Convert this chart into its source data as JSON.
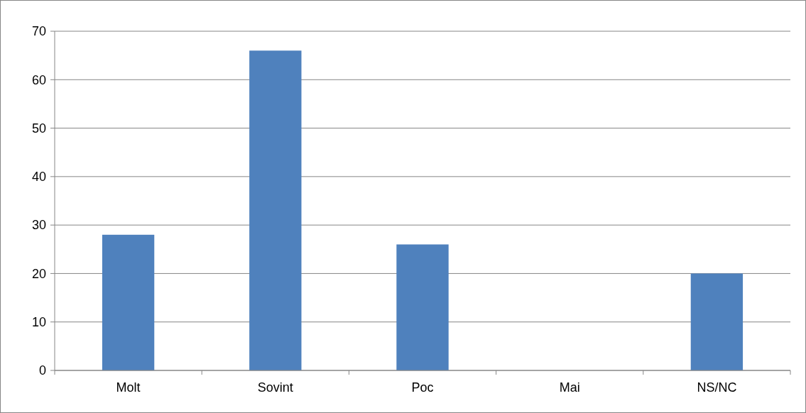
{
  "chart_data": {
    "type": "bar",
    "categories": [
      "Molt",
      "Sovint",
      "Poc",
      "Mai",
      "NS/NC"
    ],
    "values": [
      28,
      66,
      26,
      0,
      20
    ],
    "color": "#4f81bd",
    "ylim": [
      0,
      70
    ],
    "yticks": [
      0,
      10,
      20,
      30,
      40,
      50,
      60,
      70
    ],
    "grid": "y"
  }
}
